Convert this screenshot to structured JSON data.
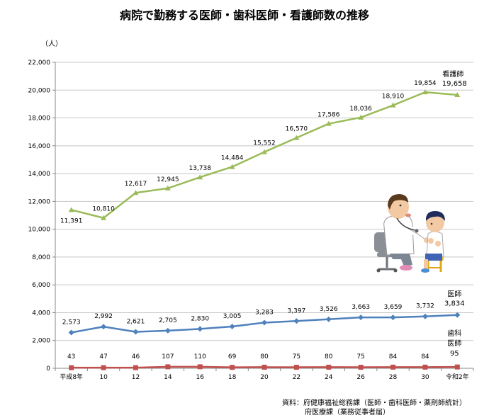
{
  "chart_data": {
    "type": "line",
    "title": "病院で勤務する医師・歯科医師・看護師数の推移",
    "unit": "（人）",
    "categories": [
      "平成8年",
      "10",
      "12",
      "14",
      "16",
      "18",
      "20",
      "22",
      "24",
      "26",
      "28",
      "30",
      "令和2年"
    ],
    "ylim": [
      0,
      22000
    ],
    "yticks": [
      "0",
      "2,000",
      "4,000",
      "6,000",
      "8,000",
      "10,000",
      "12,000",
      "14,000",
      "16,000",
      "18,000",
      "20,000",
      "22,000"
    ],
    "grid": "horizontal",
    "series": [
      {
        "name": "看護師",
        "color": "#9bbb59",
        "marker": "triangle",
        "values": [
          11391,
          10810,
          12617,
          12945,
          13738,
          14484,
          15552,
          16570,
          17586,
          18036,
          18910,
          19854,
          19658
        ],
        "labels": [
          "11,391",
          "10,810",
          "12,617",
          "12,945",
          "13,738",
          "14,484",
          "15,552",
          "16,570",
          "17,586",
          "18,036",
          "18,910",
          "19,854",
          "19,658"
        ]
      },
      {
        "name": "医師",
        "color": "#4f81bd",
        "marker": "diamond",
        "values": [
          2573,
          2992,
          2621,
          2705,
          2830,
          3005,
          3283,
          3397,
          3526,
          3663,
          3659,
          3732,
          3834
        ],
        "labels": [
          "2,573",
          "2,992",
          "2,621",
          "2,705",
          "2,830",
          "3,005",
          "3,283",
          "3,397",
          "3,526",
          "3,663",
          "3,659",
          "3,732",
          "3,834"
        ]
      },
      {
        "name": "歯科医師",
        "name_lines": [
          "歯科",
          "医師"
        ],
        "color": "#c0504d",
        "marker": "square",
        "values": [
          43,
          47,
          46,
          107,
          110,
          69,
          80,
          75,
          80,
          75,
          84,
          84,
          95
        ],
        "labels": [
          "43",
          "47",
          "46",
          "107",
          "110",
          "69",
          "80",
          "75",
          "80",
          "75",
          "84",
          "84",
          "95"
        ]
      }
    ]
  },
  "source": {
    "line1": "資料：府健康福祉総務課（医師・歯科医師・薬剤師統計）",
    "line2": "府医療課（業務従事者届）"
  },
  "illustration": {
    "icon": "doctor-examining-child-illustration"
  }
}
